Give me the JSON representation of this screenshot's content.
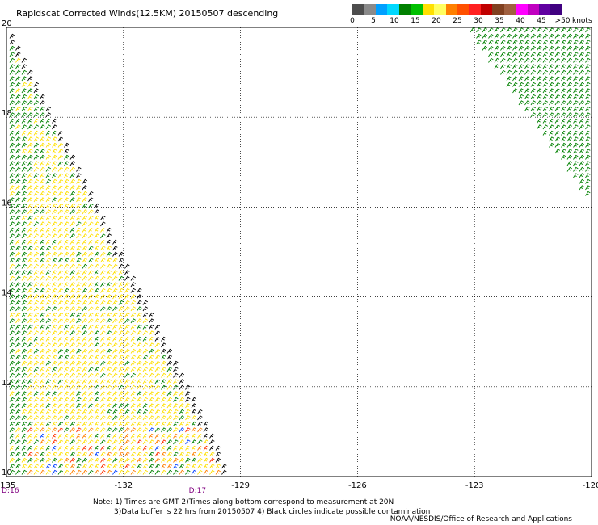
{
  "header": {
    "title": "Rapidscat Corrected Winds(12.5KM) 20150507 descending"
  },
  "legend": {
    "swatches": [
      {
        "color": "#4d4d4d"
      },
      {
        "color": "#8a8a8a"
      },
      {
        "color": "#00a0ff"
      },
      {
        "color": "#00d8ff"
      },
      {
        "color": "#008000"
      },
      {
        "color": "#00c000"
      },
      {
        "color": "#ffe000"
      },
      {
        "color": "#ffff60"
      },
      {
        "color": "#ff8000"
      },
      {
        "color": "#ff5000"
      },
      {
        "color": "#ff2020"
      },
      {
        "color": "#c00000"
      },
      {
        "color": "#804020"
      },
      {
        "color": "#a06040"
      },
      {
        "color": "#ff00ff"
      },
      {
        "color": "#c000c0"
      },
      {
        "color": "#6000a0"
      },
      {
        "color": "#400080"
      }
    ],
    "labels": [
      "0",
      "5",
      "10",
      "15",
      "20",
      "25",
      "30",
      "35",
      "40",
      "45",
      ">50"
    ],
    "units": "knots"
  },
  "map_data": {
    "type": "wind-barbs",
    "lon_range": [
      -135,
      -120
    ],
    "lat_range": [
      10,
      20
    ],
    "lon_ticks": [
      "-135",
      "-132",
      "-129",
      "-126",
      "-123",
      "-120"
    ],
    "lat_ticks": [
      "20",
      "18",
      "16",
      "14",
      "12",
      "10"
    ],
    "grid": true,
    "time_marks": [
      {
        "label": "D:16",
        "lon": -135,
        "color": "#800080"
      },
      {
        "label": "D:17",
        "lon": -130.2,
        "color": "#800080"
      }
    ],
    "swaths": [
      {
        "name": "west",
        "polygon": [
          [
            -135,
            20
          ],
          [
            -129.3,
            10
          ],
          [
            -135,
            10
          ]
        ]
      },
      {
        "name": "east",
        "polygon": [
          [
            -123.3,
            20
          ],
          [
            -120,
            20
          ],
          [
            -120,
            16
          ]
        ]
      }
    ],
    "speed_colors": [
      {
        "max": 5,
        "color": "#000000"
      },
      {
        "max": 10,
        "color": "#0040ff"
      },
      {
        "max": 20,
        "color": "#008000"
      },
      {
        "max": 25,
        "color": "#ffe000"
      },
      {
        "max": 30,
        "color": "#ff8000"
      },
      {
        "max": 35,
        "color": "#ff3000"
      }
    ]
  },
  "footer": {
    "note_line1": "Note: 1) Times are GMT 2)Times along bottom correspond to measurement at 20N",
    "note_line2": "3)Data buffer is 22 hrs from 20150507 4) Black circles indicate possible contamination",
    "credit": "NOAA/NESDIS/Office of Research and Applications"
  }
}
